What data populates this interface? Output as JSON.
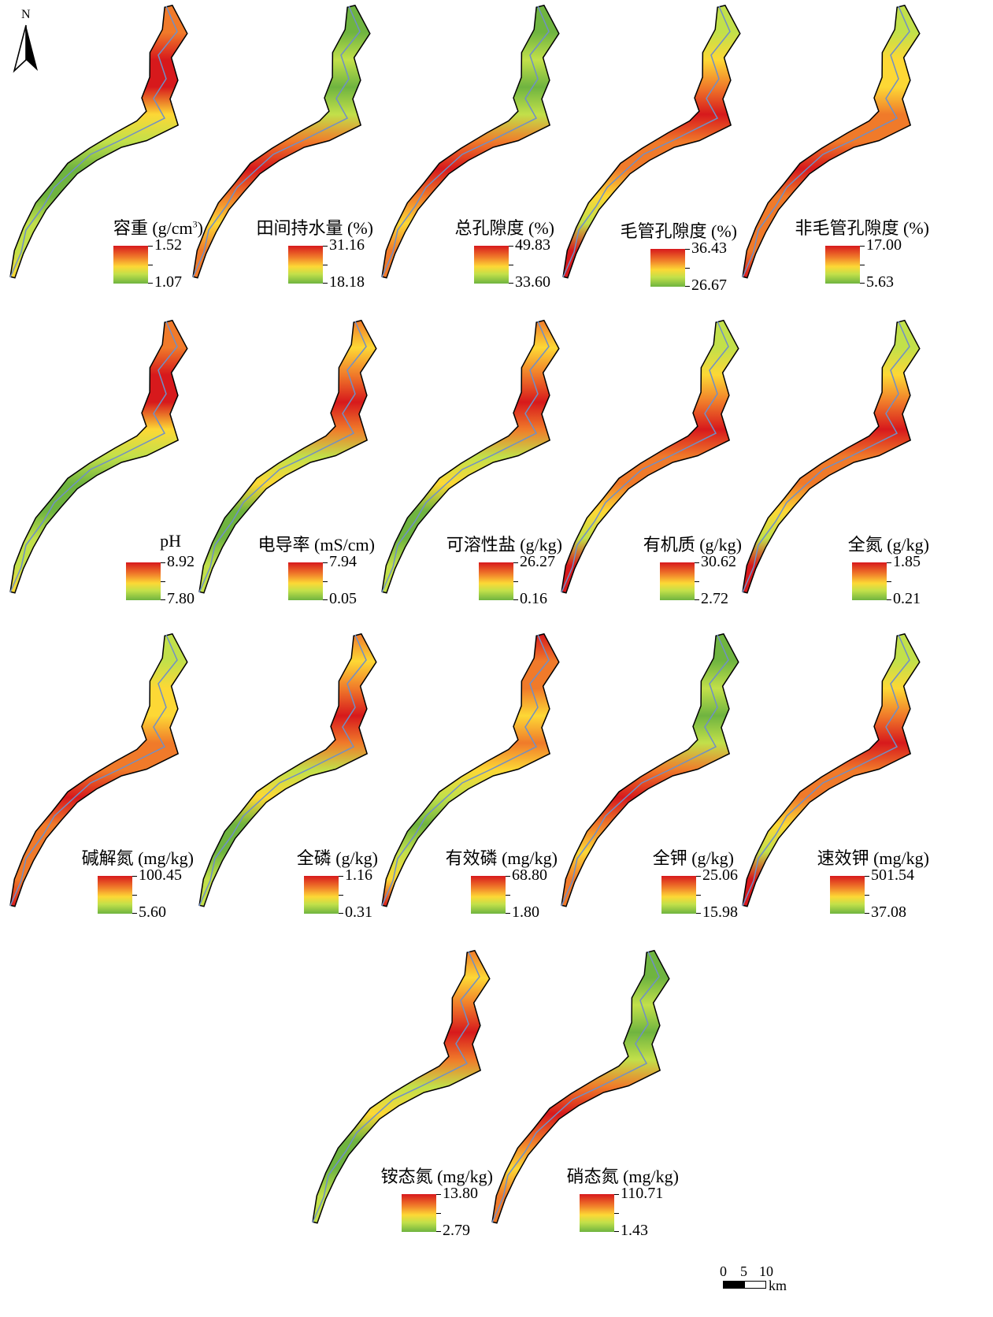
{
  "north_arrow": {
    "label": "N"
  },
  "scale_bar": {
    "ticks": [
      "0",
      "5",
      "10"
    ],
    "unit": "km"
  },
  "panels": [
    {
      "id": "bulk-density",
      "title_main": "容重 (g/cm",
      "title_sup": "3",
      "title_end": ")",
      "max": "1.52",
      "min": "1.07",
      "scheme": "p1"
    },
    {
      "id": "field-capacity",
      "title": "田间持水量 (%)",
      "max": "31.16",
      "min": "18.18",
      "scheme": "p2"
    },
    {
      "id": "total-porosity",
      "title": "总孔隙度 (%)",
      "max": "49.83",
      "min": "33.60",
      "scheme": "p2"
    },
    {
      "id": "capillary-porosity",
      "title": "毛管孔隙度 (%)",
      "max": "36.43",
      "min": "26.67",
      "scheme": "p4"
    },
    {
      "id": "noncapillary-porosity",
      "title": "非毛管孔隙度 (%)",
      "max": "17.00",
      "min": "5.63",
      "scheme": "p5"
    },
    {
      "id": "ph",
      "title": "pH",
      "max": "8.92",
      "min": "7.80",
      "scheme": "p1"
    },
    {
      "id": "conductivity",
      "title": "电导率 (mS/cm)",
      "max": "7.94",
      "min": "0.05",
      "scheme": "p3"
    },
    {
      "id": "soluble-salt",
      "title": "可溶性盐 (g/kg)",
      "max": "26.27",
      "min": "0.16",
      "scheme": "p3"
    },
    {
      "id": "organic-matter",
      "title": "有机质 (g/kg)",
      "max": "30.62",
      "min": "2.72",
      "scheme": "p4"
    },
    {
      "id": "total-nitrogen",
      "title": "全氮 (g/kg)",
      "max": "1.85",
      "min": "0.21",
      "scheme": "p4"
    },
    {
      "id": "alkali-nitrogen",
      "title": "碱解氮 (mg/kg)",
      "max": "100.45",
      "min": "5.60",
      "scheme": "p5"
    },
    {
      "id": "total-phosphorus",
      "title": "全磷 (g/kg)",
      "max": "1.16",
      "min": "0.31",
      "scheme": "p3"
    },
    {
      "id": "available-phosphorus",
      "title": "有效磷 (mg/kg)",
      "max": "68.80",
      "min": "1.80",
      "scheme": "p6"
    },
    {
      "id": "total-potassium",
      "title": "全钾 (g/kg)",
      "max": "25.06",
      "min": "15.98",
      "scheme": "p2"
    },
    {
      "id": "available-potassium",
      "title": "速效钾 (mg/kg)",
      "max": "501.54",
      "min": "37.08",
      "scheme": "p4"
    },
    {
      "id": "ammonium-nitrogen",
      "title": "铵态氮 (mg/kg)",
      "max": "13.80",
      "min": "2.79",
      "scheme": "p3"
    },
    {
      "id": "nitrate-nitrogen",
      "title": "硝态氮 (mg/kg)",
      "max": "110.71",
      "min": "1.43",
      "scheme": "p2"
    }
  ],
  "colors": {
    "high": "#d7191c",
    "mid_high": "#f07a2a",
    "mid": "#fdd835",
    "mid_low": "#c2e04a",
    "low": "#6fb440",
    "river": "#6f8fc7",
    "outline": "#000000"
  }
}
